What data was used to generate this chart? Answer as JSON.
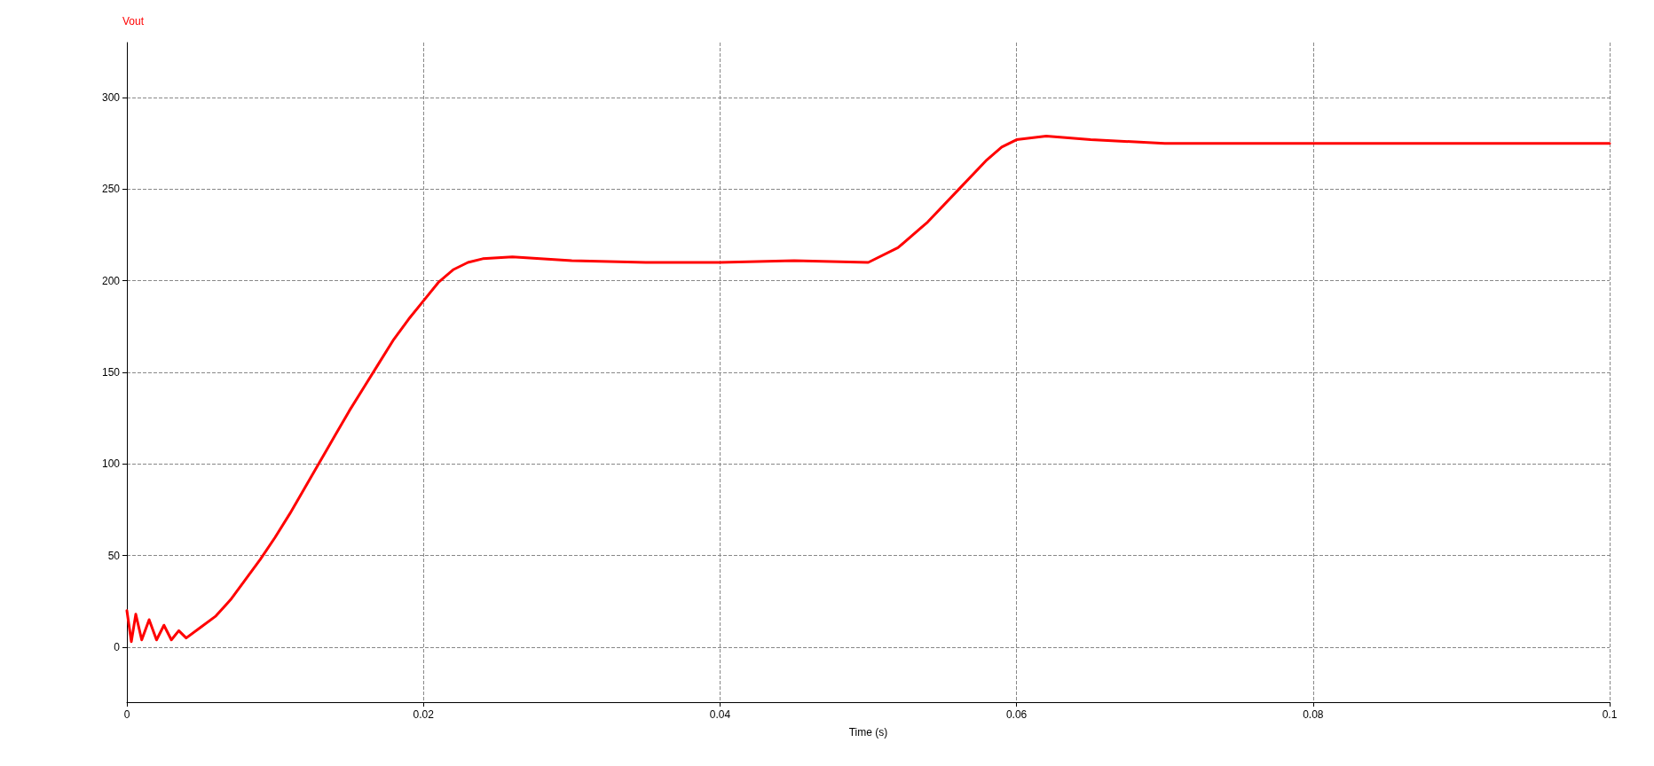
{
  "chart_data": {
    "type": "line",
    "xlabel": "Time (s)",
    "legend": "top left",
    "grid": true,
    "line_style": "solid",
    "marker": "none",
    "xlim": [
      0,
      0.1
    ],
    "xticks": [
      0,
      0.02,
      0.04,
      0.06,
      0.08,
      0.1
    ],
    "ylim": [
      -30,
      330
    ],
    "yticks": [
      0,
      50,
      100,
      150,
      200,
      250,
      300
    ],
    "series": [
      {
        "name": "Vout",
        "color": "#ff0000",
        "x": [
          0,
          0.0003,
          0.0006,
          0.001,
          0.0015,
          0.002,
          0.0025,
          0.003,
          0.0035,
          0.004,
          0.005,
          0.006,
          0.007,
          0.008,
          0.009,
          0.01,
          0.011,
          0.012,
          0.013,
          0.014,
          0.015,
          0.016,
          0.017,
          0.018,
          0.019,
          0.02,
          0.021,
          0.022,
          0.023,
          0.024,
          0.026,
          0.03,
          0.035,
          0.04,
          0.045,
          0.05,
          0.052,
          0.054,
          0.056,
          0.058,
          0.059,
          0.06,
          0.062,
          0.065,
          0.07,
          0.08,
          0.09,
          0.1
        ],
        "values": [
          20,
          3,
          18,
          4,
          15,
          4,
          12,
          4,
          9,
          5,
          11,
          17,
          26,
          37,
          48,
          60,
          73,
          87,
          101,
          115,
          129,
          142,
          155,
          168,
          179,
          189,
          199,
          206,
          210,
          212,
          213,
          211,
          210,
          210,
          211,
          210,
          218,
          232,
          249,
          266,
          273,
          277,
          279,
          277,
          275,
          275,
          275,
          275
        ]
      }
    ]
  }
}
